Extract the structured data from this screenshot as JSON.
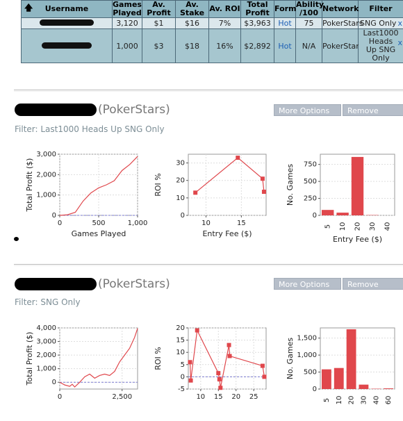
{
  "summary_table": {
    "headers": [
      "Username",
      "Games Played",
      "Av. Profit",
      "Av. Stake",
      "Av. ROI",
      "Total Profit",
      "Form",
      "Ability /100",
      "Network",
      "Filter"
    ],
    "headers_display": [
      "Username",
      "Games\nPlayed",
      "Av.\nProfit",
      "Av.\nStake",
      "Av. ROI",
      "Total\nProfit",
      "Form",
      "Ability\n/100",
      "Network",
      "Filter"
    ],
    "rows": [
      {
        "games": "3,120",
        "av_profit": "$1",
        "av_stake": "$16",
        "av_roi": "7%",
        "total_profit": "$3,963",
        "form": "Hot",
        "ability": "75",
        "network": "PokerStars",
        "filter": "SNG Only",
        "remove": "x"
      },
      {
        "games": "1,000",
        "av_profit": "$3",
        "av_stake": "$18",
        "av_roi": "16%",
        "total_profit": "$2,892",
        "form": "Hot",
        "ability": "N/A",
        "network": "PokerStars",
        "filter": "Last1000 Heads Up SNG Only",
        "remove": "x"
      }
    ]
  },
  "players": [
    {
      "site": "(PokerStars)",
      "filter_label": "Filter: Last1000 Heads Up SNG Only",
      "more_options": "More Options",
      "remove": "Remove"
    },
    {
      "site": "(PokerStars)",
      "filter_label": "Filter: SNG Only",
      "more_options": "More Options",
      "remove": "Remove"
    }
  ],
  "chart_data": [
    {
      "type": "line",
      "xlabel": "Games Played",
      "ylabel": "Total Profit ($)",
      "xlim": [
        0,
        1000
      ],
      "ylim": [
        0,
        3000
      ],
      "xticks": [
        "0",
        "500",
        "1,000"
      ],
      "yticks": [
        "0",
        "1,000",
        "2,000",
        "3,000"
      ],
      "x": [
        0,
        100,
        200,
        300,
        400,
        500,
        600,
        700,
        800,
        900,
        1000
      ],
      "y": [
        0,
        30,
        150,
        700,
        1100,
        1350,
        1500,
        1700,
        2200,
        2500,
        2892
      ]
    },
    {
      "type": "line",
      "xlabel": "Entry Fee ($)",
      "ylabel": "ROI %",
      "xlim": [
        7.5,
        18.5
      ],
      "ylim": [
        0,
        35
      ],
      "xticks": [
        "10",
        "15"
      ],
      "yticks": [
        "0",
        "10",
        "20",
        "30"
      ],
      "x": [
        8.5,
        14.5,
        18,
        18.2
      ],
      "y": [
        13,
        33,
        21,
        13.5
      ]
    },
    {
      "type": "bar",
      "xlabel": "Entry Fee ($)",
      "ylabel": "No. Games",
      "ylim": [
        0,
        900
      ],
      "categories": [
        "5",
        "10",
        "20",
        "30",
        "40"
      ],
      "values": [
        80,
        40,
        860,
        5,
        0
      ],
      "yticks": [
        "0",
        "250",
        "500",
        "750"
      ]
    },
    {
      "type": "line",
      "xlabel": "",
      "ylabel": "Total Profit ($)",
      "xlim": [
        0,
        3120
      ],
      "ylim": [
        -500,
        4000
      ],
      "xticks": [
        "0",
        "2,500"
      ],
      "yticks": [
        "0",
        "1,000",
        "2,000",
        "3,000",
        "4,000"
      ],
      "x": [
        0,
        200,
        400,
        500,
        600,
        800,
        1000,
        1200,
        1400,
        1600,
        1800,
        2000,
        2200,
        2400,
        2600,
        2800,
        3000,
        3120
      ],
      "y": [
        0,
        -200,
        -300,
        -150,
        -350,
        0,
        400,
        600,
        300,
        500,
        600,
        500,
        800,
        1500,
        2000,
        2500,
        3300,
        3963
      ]
    },
    {
      "type": "line",
      "xlabel": "",
      "ylabel": "ROI %",
      "xlim": [
        6.5,
        28.5
      ],
      "ylim": [
        -5,
        20
      ],
      "xticks": [
        "10",
        "15",
        "20",
        "25"
      ],
      "yticks": [
        "-5",
        "0",
        "5",
        "10",
        "15",
        "20"
      ],
      "x": [
        7,
        7.2,
        9,
        15,
        15.3,
        15.6,
        18,
        18.2,
        27.5,
        28
      ],
      "y": [
        6,
        -1.5,
        19,
        1.5,
        -1,
        -4.5,
        13,
        8.5,
        4.5,
        0
      ]
    },
    {
      "type": "bar",
      "xlabel": "",
      "ylabel": "No. Games",
      "ylim": [
        0,
        1800
      ],
      "categories": [
        "5",
        "10",
        "20",
        "30",
        "40",
        "60"
      ],
      "values": [
        580,
        620,
        1760,
        130,
        10,
        20
      ],
      "yticks": [
        "0",
        "500",
        "1,000",
        "1,500"
      ]
    }
  ],
  "colors": {
    "header_bg": "#8fb6c2",
    "row1_bg": "#dbe7ec",
    "row2_bg": "#a6c6cf",
    "series": "#e0474c",
    "button_bg": "#b6bec9",
    "link": "#1c5fb5"
  }
}
